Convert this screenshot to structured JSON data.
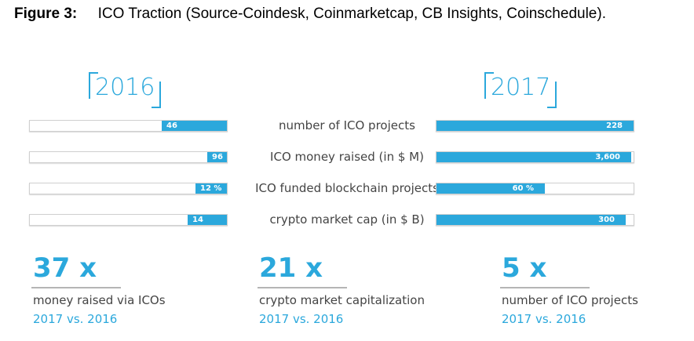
{
  "caption": {
    "label": "Figure 3:",
    "text": "ICO Traction (Source-Coindesk, Coinmarketcap, CB Insights, Coinschedule)."
  },
  "chart_data": {
    "type": "bar",
    "categories": [
      "number of ICO projects",
      "ICO money raised (in $ M)",
      "ICO funded blockchain projects",
      "crypto market cap (in $ B)"
    ],
    "series": [
      {
        "name": "2016",
        "values": [
          46,
          96,
          12,
          14
        ],
        "labels": [
          "46",
          "96",
          "12 %",
          "14"
        ]
      },
      {
        "name": "2017",
        "values": [
          228,
          3600,
          60,
          300
        ],
        "labels": [
          "228",
          "3,600",
          "60 %",
          "300"
        ]
      }
    ],
    "fill_fractions": {
      "2016": [
        0.33,
        0.1,
        0.16,
        0.2
      ],
      "2017": [
        1.0,
        0.99,
        0.55,
        0.96
      ]
    },
    "accent_color": "#2ba8dc"
  },
  "stats": [
    {
      "multiplier": "37 x",
      "description": "money raised via ICOs",
      "comparison": "2017 vs. 2016"
    },
    {
      "multiplier": "21 x",
      "description": "crypto market capitalization",
      "comparison": "2017 vs. 2016"
    },
    {
      "multiplier": "5 x",
      "description": "number of ICO projects",
      "comparison": "2017 vs. 2016"
    }
  ]
}
